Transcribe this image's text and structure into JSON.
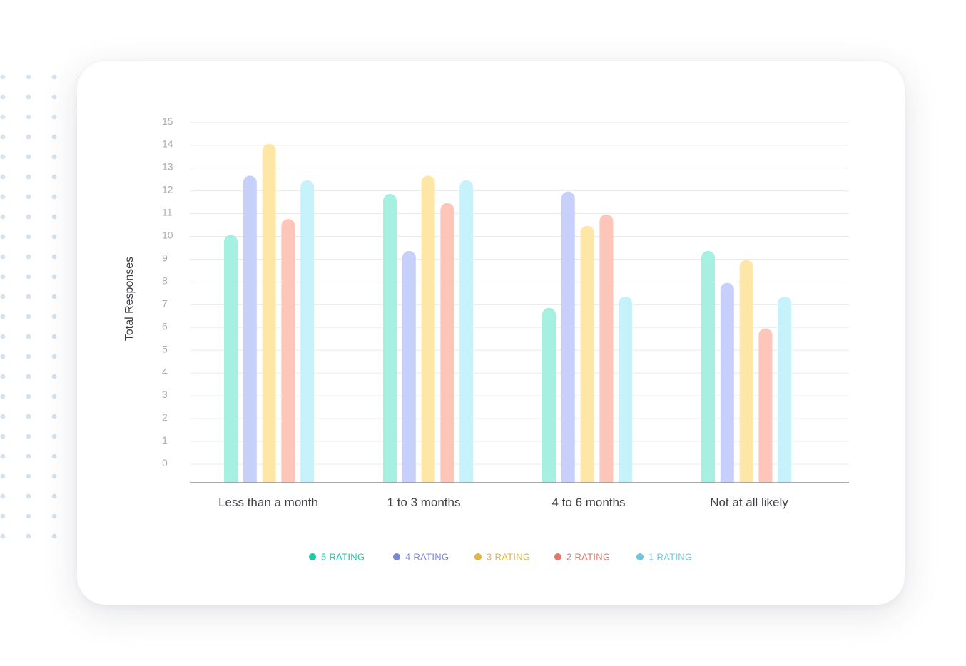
{
  "chart_data": {
    "type": "bar",
    "title": "",
    "xlabel": "",
    "ylabel": "Total Responses",
    "ylim": [
      0,
      15
    ],
    "yticks": [
      0,
      1,
      2,
      3,
      4,
      5,
      6,
      7,
      8,
      9,
      10,
      11,
      12,
      13,
      14,
      15
    ],
    "grid": true,
    "legend_position": "bottom",
    "categories": [
      "Less than a month",
      "1 to 3 months",
      "4 to 6 months",
      "Not at all likely"
    ],
    "series": [
      {
        "name": "5 RATING",
        "values": [
          10,
          11.8,
          6.8,
          9.3
        ],
        "color": "#a6f0e2",
        "legend_color": "#1fc7a4"
      },
      {
        "name": "4 RATING",
        "values": [
          12.6,
          9.3,
          11.9,
          7.9
        ],
        "color": "#c7d0fb",
        "legend_color": "#7a86d8"
      },
      {
        "name": "3 RATING",
        "values": [
          14,
          12.6,
          10.4,
          8.9
        ],
        "color": "#fde6a6",
        "legend_color": "#e2b43e"
      },
      {
        "name": "2 RATING",
        "values": [
          10.7,
          11.4,
          10.9,
          5.9
        ],
        "color": "#fdc6b8",
        "legend_color": "#e2796a"
      },
      {
        "name": "1 RATING",
        "values": [
          12.4,
          12.4,
          7.3,
          7.3
        ],
        "color": "#c6f2fb",
        "legend_color": "#6dc6dc"
      }
    ]
  }
}
